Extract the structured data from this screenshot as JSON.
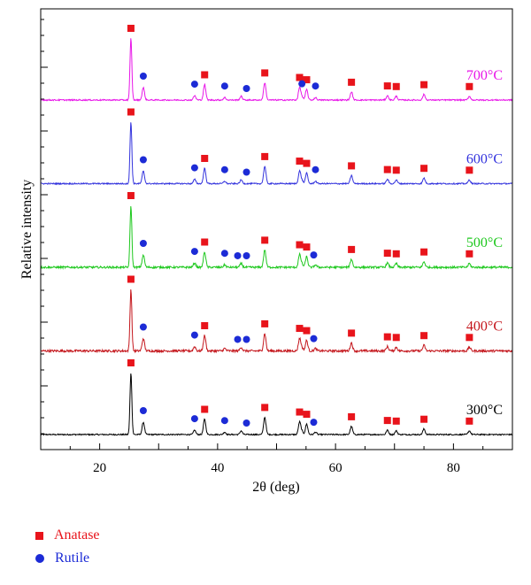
{
  "chart_data": {
    "type": "line",
    "xlabel": "2θ (deg)",
    "ylabel": "Relative intensity",
    "xlim": [
      10,
      90
    ],
    "xticks": [
      20,
      40,
      60,
      80
    ],
    "grid": false,
    "series": [
      {
        "name": "300°C",
        "color": "#000000",
        "offset": 0.0,
        "noise": 0.01
      },
      {
        "name": "400°C",
        "color": "#c4161c",
        "offset": 1.0,
        "noise": 0.018
      },
      {
        "name": "500°C",
        "color": "#1ec81e",
        "offset": 2.0,
        "noise": 0.016
      },
      {
        "name": "600°C",
        "color": "#3333dd",
        "offset": 3.0,
        "noise": 0.01
      },
      {
        "name": "700°C",
        "color": "#e817e8",
        "offset": 4.0,
        "noise": 0.01
      }
    ],
    "anatase_peaks": [
      {
        "x": 25.3,
        "h": 1.0
      },
      {
        "x": 37.8,
        "h": 0.25
      },
      {
        "x": 48.0,
        "h": 0.28
      },
      {
        "x": 53.9,
        "h": 0.2
      },
      {
        "x": 55.1,
        "h": 0.17
      },
      {
        "x": 62.7,
        "h": 0.13
      },
      {
        "x": 68.8,
        "h": 0.07
      },
      {
        "x": 70.3,
        "h": 0.06
      },
      {
        "x": 75.0,
        "h": 0.09
      },
      {
        "x": 82.7,
        "h": 0.06
      }
    ],
    "rutile_peaks": [
      {
        "x": 27.4,
        "h": 0.2
      },
      {
        "x": 36.1,
        "h": 0.07
      },
      {
        "x": 41.2,
        "h": 0.04
      },
      {
        "x": 44.0,
        "h": 0.06
      },
      {
        "x": 54.3,
        "h": 0.05
      },
      {
        "x": 56.6,
        "h": 0.04
      }
    ],
    "markers": {
      "anatase": [
        25.3,
        37.8,
        48.0,
        53.9,
        55.1,
        62.7,
        68.8,
        70.3,
        75.0,
        82.7
      ],
      "rutile": {
        "300°C": [
          27.4,
          36.1,
          41.2,
          44.9,
          56.3
        ],
        "400°C": [
          27.4,
          36.1,
          43.4,
          44.9,
          56.3
        ],
        "500°C": [
          27.4,
          36.1,
          41.2,
          43.4,
          44.9,
          56.3
        ],
        "600°C": [
          27.4,
          36.1,
          41.2,
          44.9,
          56.6
        ],
        "700°C": [
          27.4,
          36.1,
          41.2,
          44.9,
          54.3,
          56.6
        ]
      }
    },
    "legend": [
      {
        "label": "Anatase",
        "marker": "square",
        "color": "#e8141b"
      },
      {
        "label": "Rutile",
        "marker": "circle",
        "color": "#1c2bd6"
      }
    ],
    "legend_position": "bottom-left"
  }
}
